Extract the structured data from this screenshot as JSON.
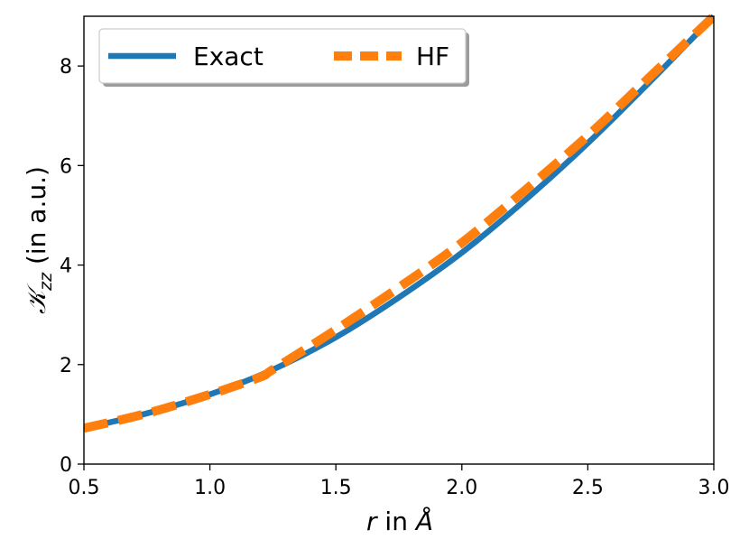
{
  "chart_data": {
    "type": "line",
    "title": "",
    "xlabel": {
      "var": "r",
      "rest": " in ",
      "unit": "Å"
    },
    "ylabel": {
      "symbol": "𝒦",
      "subscript": "zz",
      "rest": " (in a.u.)"
    },
    "xlim": [
      0.5,
      3.0
    ],
    "ylim": [
      0,
      9
    ],
    "xticks": [
      0.5,
      1.0,
      1.5,
      2.0,
      2.5,
      3.0
    ],
    "xtick_labels": [
      "0.5",
      "1.0",
      "1.5",
      "2.0",
      "2.5",
      "3.0"
    ],
    "yticks": [
      0,
      2,
      4,
      6,
      8
    ],
    "ytick_labels": [
      "0",
      "2",
      "4",
      "6",
      "8"
    ],
    "grid": false,
    "legend_position": "top-left",
    "series": [
      {
        "name": "Exact",
        "color": "#1f77b4",
        "style": "solid",
        "x": [
          0.5,
          0.75,
          1.0,
          1.25,
          1.5,
          1.75,
          2.0,
          2.25,
          2.5,
          2.75,
          3.0
        ],
        "y": [
          0.72,
          1.02,
          1.4,
          1.9,
          2.55,
          3.35,
          4.25,
          5.3,
          6.45,
          7.7,
          9.0
        ]
      },
      {
        "name": "HF",
        "color": "#ff7f0e",
        "style": "dashed",
        "x": [
          0.5,
          0.75,
          1.0,
          1.2,
          1.25,
          1.5,
          1.75,
          2.0,
          2.25,
          2.5,
          2.75,
          3.0
        ],
        "y": [
          0.72,
          1.02,
          1.4,
          1.75,
          1.9,
          2.7,
          3.55,
          4.45,
          5.5,
          6.6,
          7.8,
          9.0
        ]
      }
    ]
  }
}
